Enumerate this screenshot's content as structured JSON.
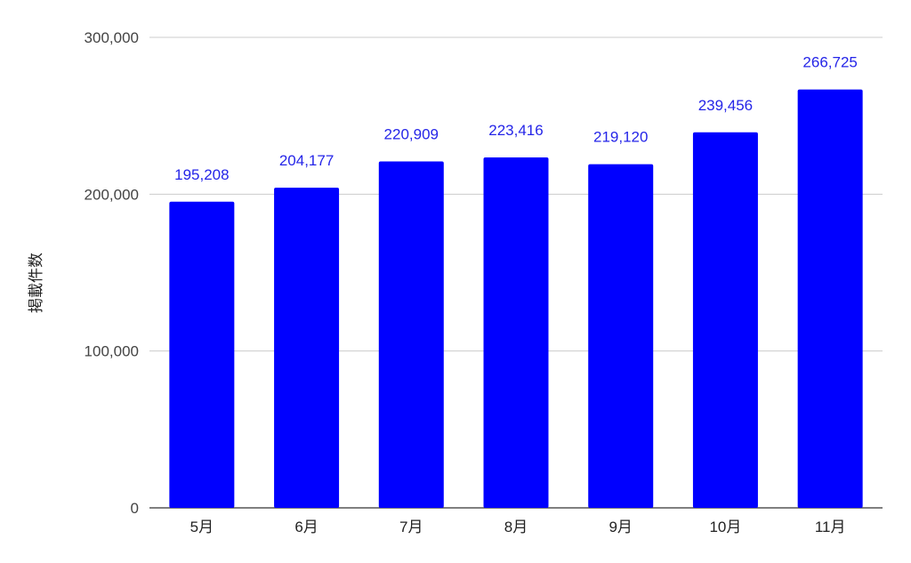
{
  "chart_data": {
    "type": "bar",
    "title": "",
    "xlabel": "",
    "ylabel": "掲載件数",
    "categories": [
      "5月",
      "6月",
      "7月",
      "8月",
      "9月",
      "10月",
      "11月"
    ],
    "values": [
      195208,
      204177,
      220909,
      223416,
      219120,
      239456,
      266725
    ],
    "value_labels": [
      "195,208",
      "204,177",
      "220,909",
      "223,416",
      "219,120",
      "239,456",
      "266,725"
    ],
    "ylim": [
      0,
      300000
    ],
    "yticks": [
      0,
      100000,
      200000,
      300000
    ],
    "ytick_labels": [
      "0",
      "100,000",
      "200,000",
      "300,000"
    ],
    "grid": true,
    "legend": "none",
    "bar_color": "#0000ff",
    "data_label_color": "#2525e8"
  }
}
